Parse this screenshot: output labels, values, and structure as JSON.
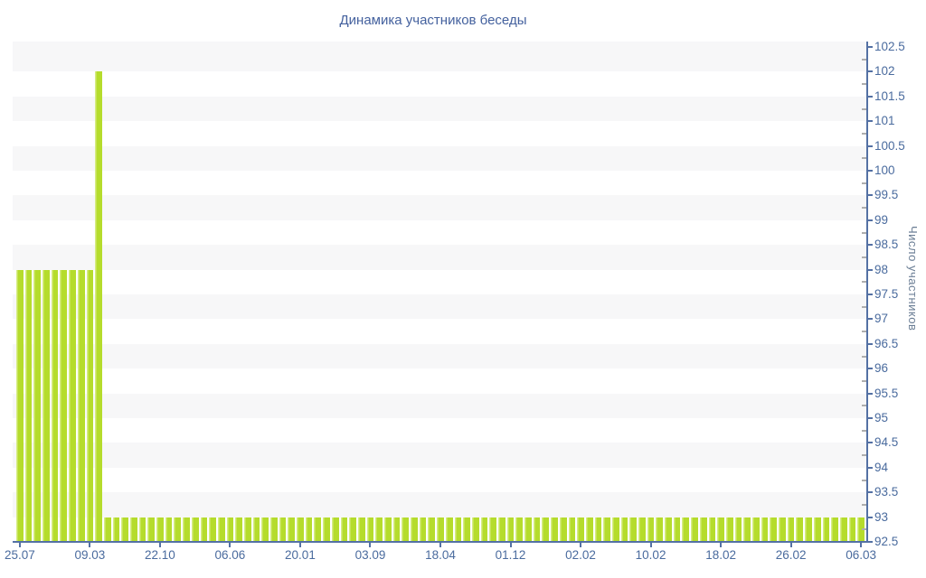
{
  "colors": {
    "bar": "#b5dc2c",
    "bar_highlight": "#d6ec85",
    "axis": "#5471a4",
    "tick_label": "#4a6b9e",
    "minor_tick": "#aeaeae",
    "stripe": "#f7f7f8",
    "title": "#44619e",
    "y_axis_title": "#6b7e95"
  },
  "chart_data": {
    "type": "bar",
    "title": "Динамика участников беседы",
    "ylabel": "Число участников",
    "xlabel": "",
    "ylim": [
      92.5,
      102.5
    ],
    "y_tick_step": 0.5,
    "y_minor_tick_step": 0.25,
    "grid": "horizontal-stripes",
    "legend": "none",
    "x_tick_labels": [
      "25.07",
      "09.03",
      "22.10",
      "06.06",
      "20.01",
      "03.09",
      "18.04",
      "01.12",
      "02.02",
      "10.02",
      "18.02",
      "26.02",
      "06.03"
    ],
    "x_tick_indices": [
      0,
      8,
      16,
      24,
      32,
      40,
      48,
      56,
      64,
      72,
      80,
      88,
      96
    ],
    "values": [
      98,
      98,
      98,
      98,
      98,
      98,
      98,
      98,
      98,
      102,
      93,
      93,
      93,
      93,
      93,
      93,
      93,
      93,
      93,
      93,
      93,
      93,
      93,
      93,
      93,
      93,
      93,
      93,
      93,
      93,
      93,
      93,
      93,
      93,
      93,
      93,
      93,
      93,
      93,
      93,
      93,
      93,
      93,
      93,
      93,
      93,
      93,
      93,
      93,
      93,
      93,
      93,
      93,
      93,
      93,
      93,
      93,
      93,
      93,
      93,
      93,
      93,
      93,
      93,
      93,
      93,
      93,
      93,
      93,
      93,
      93,
      93,
      93,
      93,
      93,
      93,
      93,
      93,
      93,
      93,
      93,
      93,
      93,
      93,
      93,
      93,
      93,
      93,
      93,
      93,
      93,
      93,
      93,
      93,
      93,
      93,
      93
    ]
  }
}
